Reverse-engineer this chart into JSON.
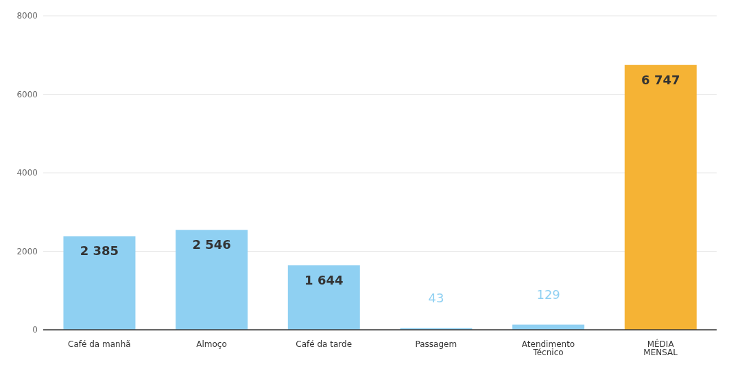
{
  "chart_data": {
    "type": "bar",
    "categories": [
      "Café da manhã",
      "Almoço",
      "Café da tarde",
      "Passagem",
      "Atendimento Técnico",
      "MÉDIA MENSAL"
    ],
    "values": [
      2385,
      2546,
      1644,
      43,
      129,
      6747
    ],
    "colors": [
      "#8fd0f2",
      "#8fd0f2",
      "#8fd0f2",
      "#8fd0f2",
      "#8fd0f2",
      "#f5b335"
    ],
    "value_labels": [
      "2 385",
      "2 546",
      "1 644",
      "43",
      "129",
      "6 747"
    ],
    "ylim": [
      0,
      8000
    ],
    "yticks": [
      0,
      2000,
      4000,
      6000,
      8000
    ],
    "grid": "y"
  }
}
